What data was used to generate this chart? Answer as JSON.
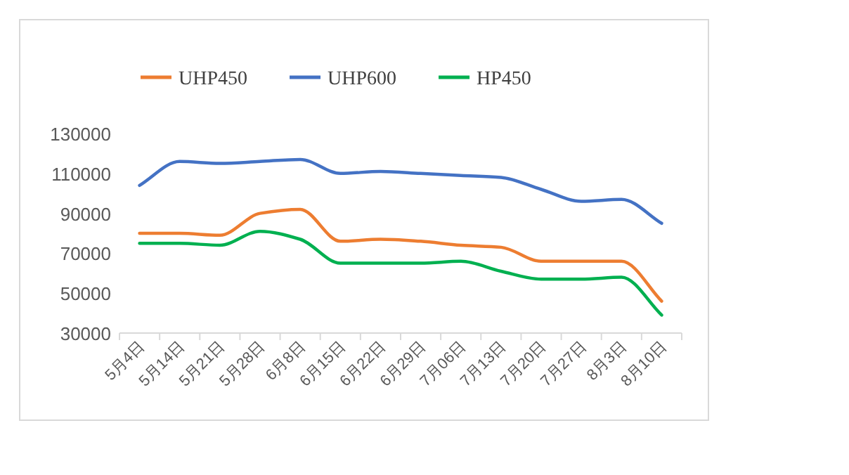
{
  "chart_data": {
    "type": "line",
    "categories": [
      "5月4日",
      "5月14日",
      "5月21日",
      "5月28日",
      "6月8日",
      "6月15日",
      "6月22日",
      "6月29日",
      "7月06日",
      "7月13日",
      "7月20日",
      "7月27日",
      "8月3日",
      "8月10日"
    ],
    "series": [
      {
        "name": "UHP450",
        "color": "#ed7d31",
        "values": [
          80000,
          80000,
          79000,
          90000,
          92000,
          76000,
          77000,
          76000,
          74000,
          73000,
          66000,
          66000,
          66000,
          46000
        ]
      },
      {
        "name": "UHP600",
        "color": "#4472c4",
        "values": [
          104000,
          116000,
          115000,
          116000,
          117000,
          110000,
          111000,
          110000,
          109000,
          108000,
          102000,
          96000,
          97000,
          85000
        ]
      },
      {
        "name": "HP450",
        "color": "#00b050",
        "values": [
          75000,
          75000,
          74000,
          81000,
          77000,
          65000,
          65000,
          65000,
          66000,
          61000,
          57000,
          57000,
          58000,
          39000
        ]
      }
    ],
    "ylim": [
      30000,
      130000
    ],
    "yticks": [
      30000,
      50000,
      70000,
      90000,
      110000,
      130000
    ],
    "grid": false,
    "legend": "top left",
    "marker": "none",
    "line_style": "solid"
  }
}
